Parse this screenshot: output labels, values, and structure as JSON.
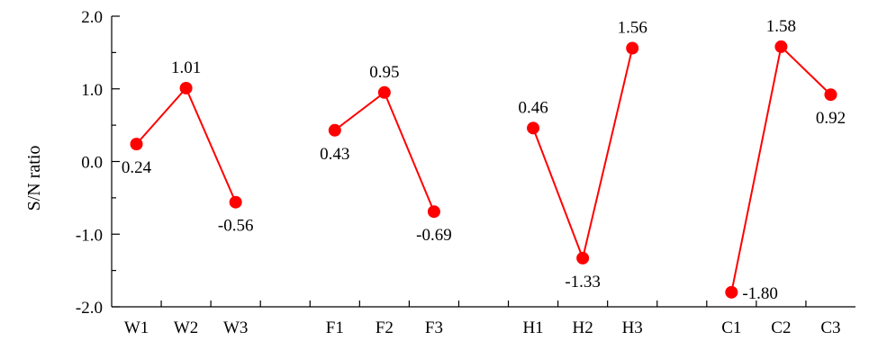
{
  "chart_data": {
    "type": "line",
    "title": "",
    "xlabel": "",
    "ylabel": "S/N ratio",
    "ylim": [
      -2.0,
      2.0
    ],
    "yticks": [
      "2.0",
      "1.0",
      "0.0",
      "-1.0",
      "-2.0"
    ],
    "grid": false,
    "legend": "none",
    "color": "#ff0000",
    "categories": [
      "W1",
      "W2",
      "W3",
      "",
      "F1",
      "F2",
      "F3",
      "",
      "H1",
      "H2",
      "H3",
      "",
      "C1",
      "C2",
      "C3"
    ],
    "groups": [
      {
        "points": [
          {
            "label": "W1",
            "value": 0.24,
            "text": "0.24"
          },
          {
            "label": "W2",
            "value": 1.01,
            "text": "1.01"
          },
          {
            "label": "W3",
            "value": -0.56,
            "text": "-0.56"
          }
        ]
      },
      {
        "points": [
          {
            "label": "F1",
            "value": 0.43,
            "text": "0.43"
          },
          {
            "label": "F2",
            "value": 0.95,
            "text": "0.95"
          },
          {
            "label": "F3",
            "value": -0.69,
            "text": "-0.69"
          }
        ]
      },
      {
        "points": [
          {
            "label": "H1",
            "value": 0.46,
            "text": "0.46"
          },
          {
            "label": "H2",
            "value": -1.33,
            "text": "-1.33"
          },
          {
            "label": "H3",
            "value": 1.56,
            "text": "1.56"
          }
        ]
      },
      {
        "points": [
          {
            "label": "C1",
            "value": -1.8,
            "text": "-1.80"
          },
          {
            "label": "C2",
            "value": 1.58,
            "text": "1.58"
          },
          {
            "label": "C3",
            "value": 0.92,
            "text": "0.92"
          }
        ]
      }
    ]
  }
}
